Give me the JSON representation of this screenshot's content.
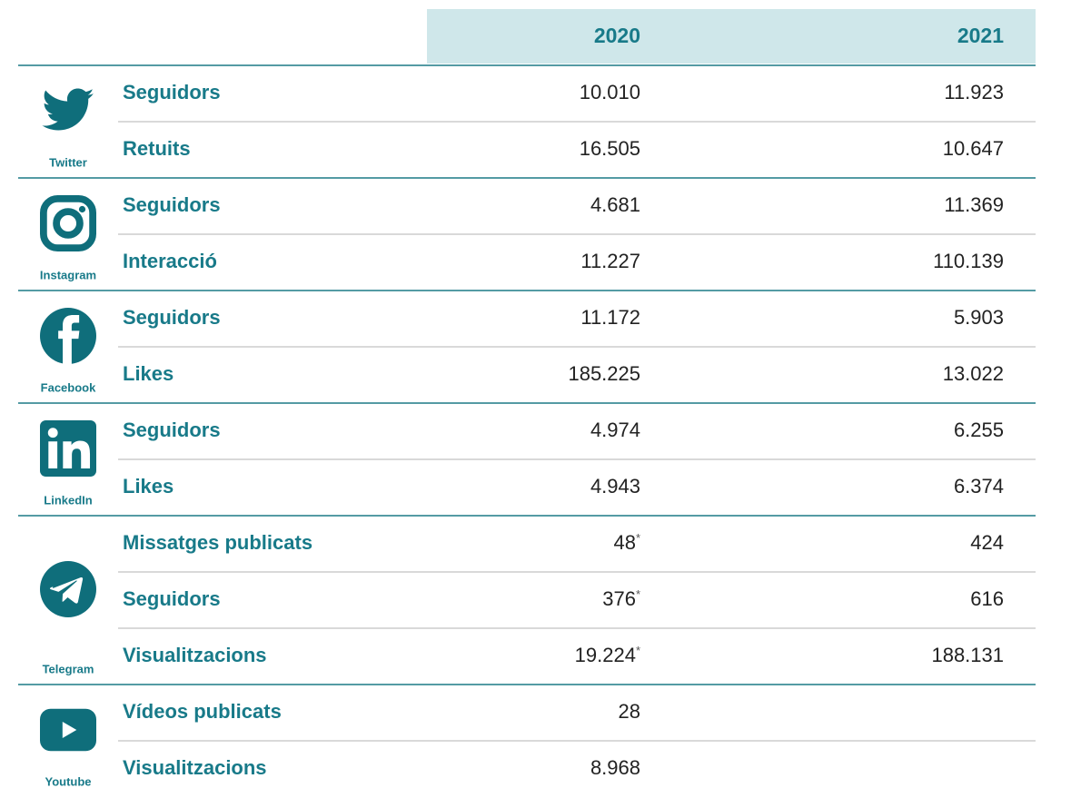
{
  "header": {
    "columns": [
      "2020",
      "2021"
    ]
  },
  "platforms": [
    {
      "name": "Twitter",
      "rows": [
        {
          "label": "Seguidors",
          "values": [
            "10.010",
            "11.923"
          ]
        },
        {
          "label": "Retuits",
          "values": [
            "16.505",
            "10.647"
          ]
        }
      ]
    },
    {
      "name": "Instagram",
      "rows": [
        {
          "label": "Seguidors",
          "values": [
            "4.681",
            "11.369"
          ]
        },
        {
          "label": "Interacció",
          "values": [
            "11.227",
            "110.139"
          ]
        }
      ]
    },
    {
      "name": "Facebook",
      "rows": [
        {
          "label": "Seguidors",
          "values": [
            "11.172",
            "5.903"
          ]
        },
        {
          "label": "Likes",
          "values": [
            "185.225",
            "13.022"
          ]
        }
      ]
    },
    {
      "name": "LinkedIn",
      "rows": [
        {
          "label": "Seguidors",
          "values": [
            "4.974",
            "6.255"
          ]
        },
        {
          "label": "Likes",
          "values": [
            "4.943",
            "6.374"
          ]
        }
      ]
    },
    {
      "name": "Telegram",
      "rows": [
        {
          "label": "Missatges publicats",
          "values": [
            {
              "text": "48",
              "note": "*"
            },
            "424"
          ]
        },
        {
          "label": "Seguidors",
          "values": [
            {
              "text": "376",
              "note": "*"
            },
            "616"
          ]
        },
        {
          "label": "Visualitzacions",
          "values": [
            {
              "text": "19.224",
              "note": "*"
            },
            "188.131"
          ]
        }
      ]
    },
    {
      "name": "Youtube",
      "rows": [
        {
          "label": "Vídeos publicats",
          "values": [
            "28"
          ]
        },
        {
          "label": "Visualitzacions",
          "values": [
            "8.968"
          ]
        }
      ]
    }
  ]
}
